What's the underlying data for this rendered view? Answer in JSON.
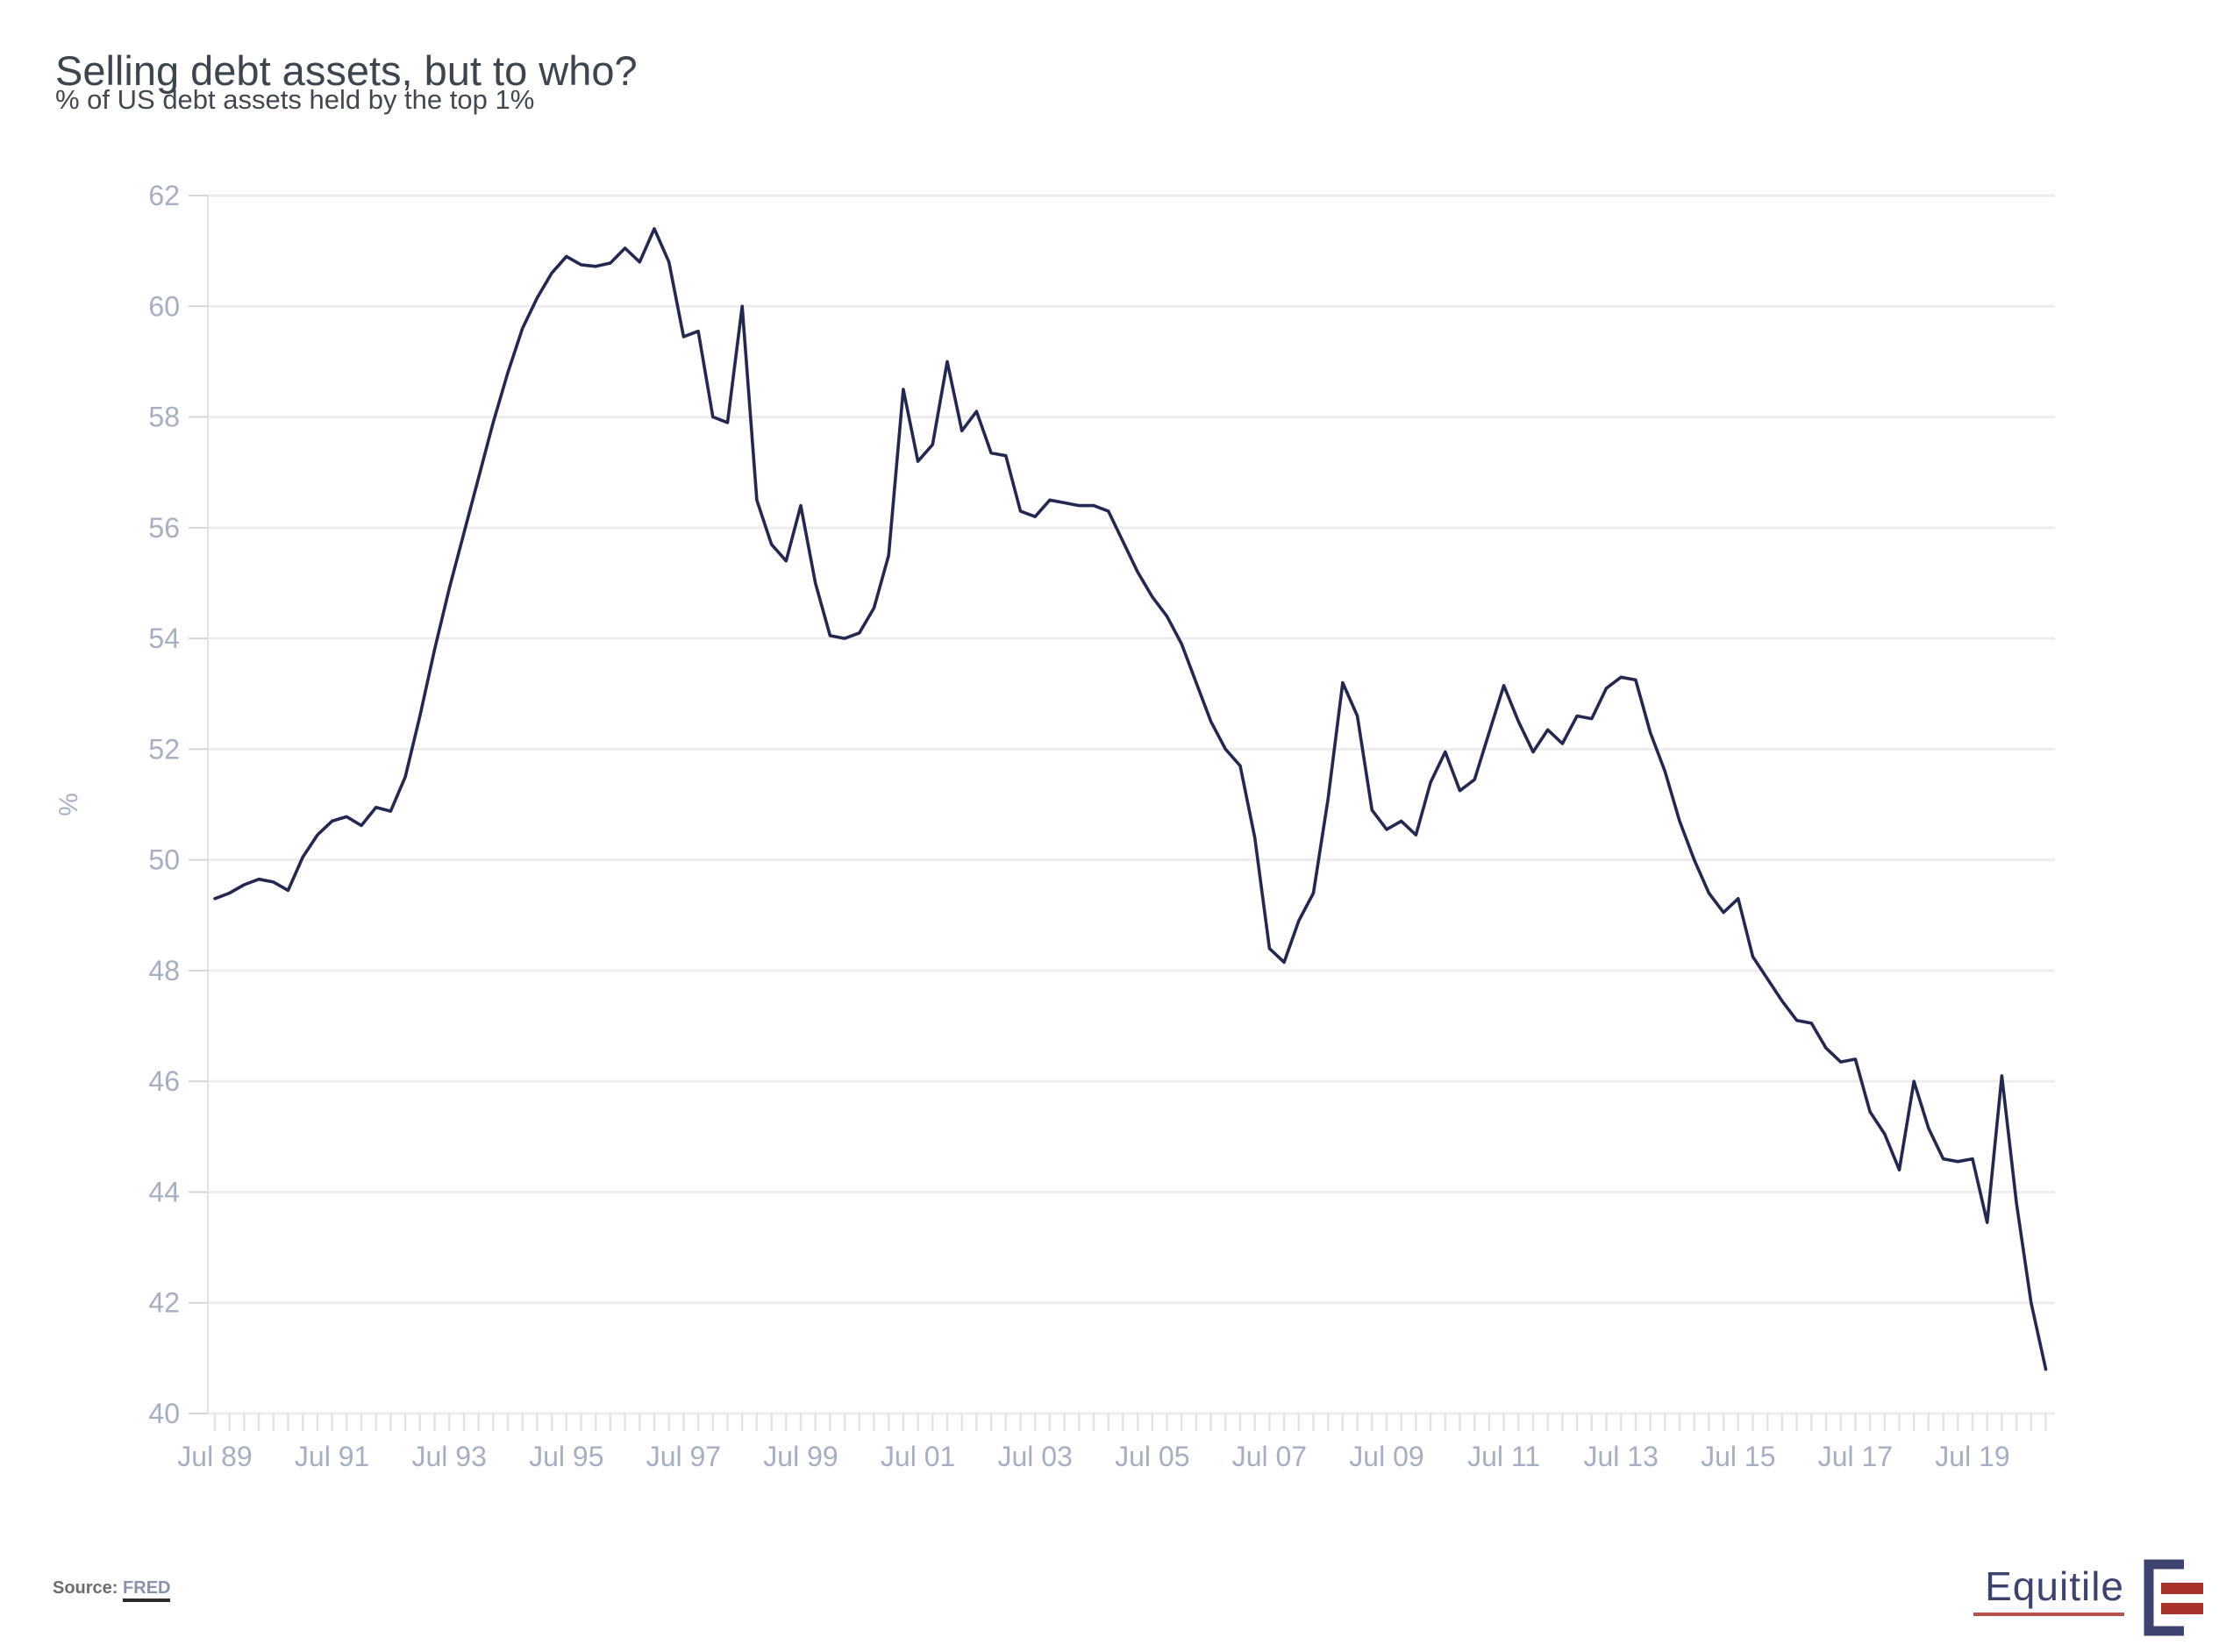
{
  "header": {
    "title": "Selling debt assets, but to who?",
    "subtitle": "% of US debt assets held by the top 1%"
  },
  "chart_data": {
    "type": "line",
    "title": "Selling debt assets, but to who?",
    "subtitle": "% of US debt assets held by the top 1%",
    "xlabel": "",
    "ylabel": "%",
    "ylim": [
      40,
      62
    ],
    "ytick_step": 2,
    "ytick_labels": [
      "40",
      "42",
      "44",
      "46",
      "48",
      "50",
      "52",
      "54",
      "56",
      "58",
      "60",
      "62"
    ],
    "grid": "horizontal-light",
    "legend_position": "none",
    "x_start_year": 1989.5,
    "x_step_years": 0.25,
    "x_tick_labels": [
      "Jul 89",
      "Jul 91",
      "Jul 93",
      "Jul 95",
      "Jul 97",
      "Jul 99",
      "Jul 01",
      "Jul 03",
      "Jul 05",
      "Jul 07",
      "Jul 09",
      "Jul 11",
      "Jul 13",
      "Jul 15",
      "Jul 17",
      "Jul 19"
    ],
    "series": [
      {
        "name": "% of US debt assets held by the top 1%",
        "color": "#232851",
        "values": [
          49.3,
          49.4,
          49.55,
          49.65,
          49.6,
          49.45,
          50.05,
          50.45,
          50.7,
          50.78,
          50.62,
          50.95,
          50.88,
          51.5,
          52.6,
          53.8,
          54.9,
          55.9,
          56.9,
          57.9,
          58.8,
          59.6,
          60.15,
          60.6,
          60.9,
          60.75,
          60.72,
          60.78,
          61.05,
          60.8,
          61.4,
          60.8,
          59.45,
          59.55,
          58.0,
          57.9,
          60.0,
          56.5,
          55.7,
          55.4,
          56.4,
          55.0,
          54.05,
          54.0,
          54.1,
          54.55,
          55.5,
          58.5,
          57.2,
          57.5,
          59.0,
          57.75,
          58.1,
          57.35,
          57.3,
          56.3,
          56.2,
          56.5,
          56.45,
          56.4,
          56.4,
          56.3,
          55.75,
          55.2,
          54.75,
          54.4,
          53.9,
          53.2,
          52.5,
          52.0,
          51.7,
          50.4,
          48.4,
          48.15,
          48.9,
          49.4,
          51.1,
          53.2,
          52.6,
          50.9,
          50.55,
          50.7,
          50.45,
          51.4,
          51.95,
          51.25,
          51.45,
          52.3,
          53.15,
          52.5,
          51.95,
          52.35,
          52.1,
          52.6,
          52.55,
          53.1,
          53.3,
          53.25,
          52.3,
          51.6,
          50.7,
          50.0,
          49.4,
          49.05,
          49.3,
          48.25,
          47.85,
          47.45,
          47.1,
          47.05,
          46.6,
          46.35,
          46.4,
          45.45,
          45.05,
          44.4,
          46.0,
          45.15,
          44.6,
          44.55,
          44.6,
          43.45,
          46.1,
          43.8,
          42.0,
          40.8
        ]
      }
    ]
  },
  "footer": {
    "source_label": "Source:",
    "source_link_text": "FRED",
    "logo_text": "Equitile"
  },
  "colors": {
    "line": "#232851",
    "grid": "#ededed",
    "axis": "#e3e3e3",
    "tick": "#d6d6d6",
    "tick_label": "#a6aec2",
    "title_text": "#3d464e",
    "logo_navy": "#3c4370",
    "logo_red": "#a8322a"
  }
}
